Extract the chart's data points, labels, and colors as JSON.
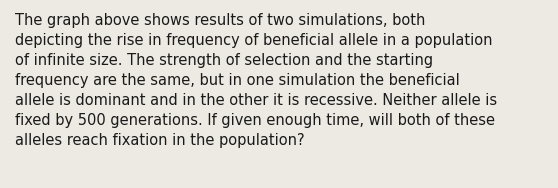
{
  "text": "The graph above shows results of two simulations, both\ndepicting the rise in frequency of beneficial allele in a population\nof infinite size. The strength of selection and the starting\nfrequency are the same, but in one simulation the beneficial\nallele is dominant and in the other it is recessive. Neither allele is\nfixed by 500 generations. If given enough time, will both of these\nalleles reach fixation in the population?",
  "background_color": "#edeae3",
  "text_color": "#1a1a1a",
  "font_size": 10.5,
  "figsize": [
    5.58,
    1.88
  ],
  "dpi": 100
}
